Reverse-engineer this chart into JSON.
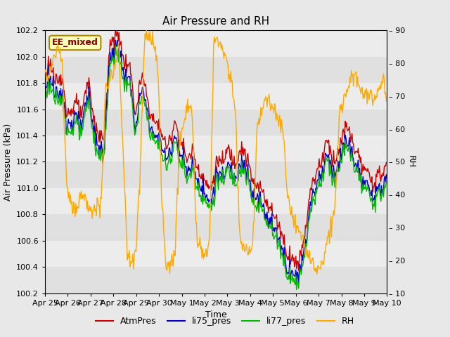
{
  "title": "Air Pressure and RH",
  "xlabel": "Time",
  "ylabel_left": "Air Pressure (kPa)",
  "ylabel_right": "RH",
  "ylim_left": [
    100.2,
    102.2
  ],
  "ylim_right": [
    10,
    90
  ],
  "yticks_left": [
    100.2,
    100.4,
    100.6,
    100.8,
    101.0,
    101.2,
    101.4,
    101.6,
    101.8,
    102.0,
    102.2
  ],
  "yticks_right": [
    10,
    20,
    30,
    40,
    50,
    60,
    70,
    80,
    90
  ],
  "color_atm": "#cc0000",
  "color_li75": "#0000cc",
  "color_li77": "#00bb00",
  "color_rh": "#ffaa00",
  "fig_bg": "#e8e8e8",
  "band_colors": [
    "#e0e0e0",
    "#ececec"
  ],
  "annotation_text": "EE_mixed",
  "legend_labels": [
    "AtmPres",
    "li75_pres",
    "li77_pres",
    "RH"
  ],
  "date_labels": [
    "Apr 25",
    "Apr 26",
    "Apr 27",
    "Apr 28",
    "Apr 29",
    "Apr 30",
    "May 1",
    "May 2",
    "May 3",
    "May 4",
    "May 5",
    "May 6",
    "May 7",
    "May 8",
    "May 9",
    "May 10"
  ],
  "linewidth": 1.0,
  "title_fontsize": 11,
  "axis_fontsize": 9,
  "tick_fontsize": 8
}
